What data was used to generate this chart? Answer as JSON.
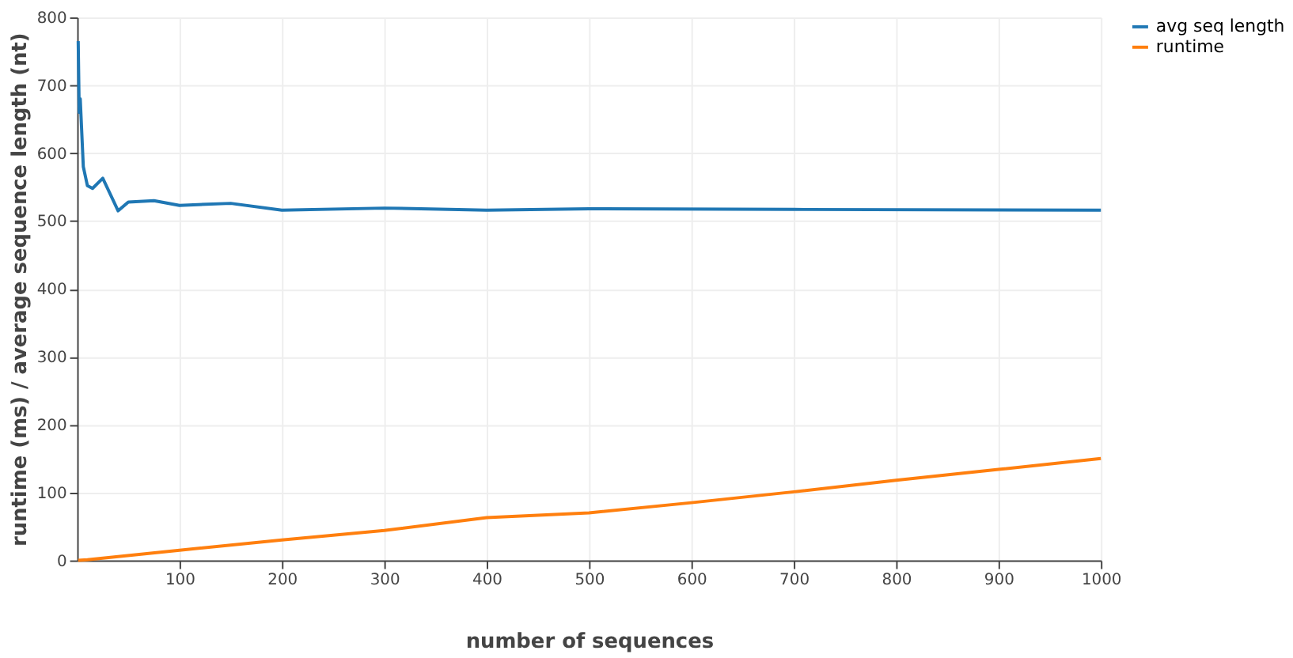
{
  "chart_data": {
    "type": "line",
    "xlabel": "number of sequences",
    "ylabel": "runtime (ms)  /  average sequence length (nt)",
    "xlim": [
      0,
      1000
    ],
    "xticks": [
      100,
      200,
      300,
      400,
      500,
      600,
      700,
      800,
      900,
      1000
    ],
    "ylim": [
      0,
      800
    ],
    "yticks": [
      0,
      100,
      200,
      300,
      400,
      500,
      600,
      700,
      800
    ],
    "grid": true,
    "legend": "top right",
    "marker": "none",
    "line_style": "solid",
    "series": [
      {
        "name": "avg seq length",
        "color": "#1f77b4",
        "x": [
          1,
          2,
          3,
          6,
          10,
          15,
          25,
          40,
          50,
          75,
          100,
          150,
          200,
          300,
          400,
          500,
          700,
          1000
        ],
        "values": [
          765,
          660,
          680,
          580,
          552,
          548,
          563,
          515,
          528,
          530,
          523,
          526,
          516,
          519,
          516,
          518,
          517,
          516
        ]
      },
      {
        "name": "runtime",
        "color": "#ff7f0e",
        "x": [
          1,
          10,
          100,
          200,
          300,
          400,
          500,
          600,
          700,
          800,
          900,
          1000
        ],
        "values": [
          0,
          1,
          15,
          30,
          44,
          63,
          70,
          85,
          101,
          118,
          134,
          150
        ]
      }
    ]
  }
}
